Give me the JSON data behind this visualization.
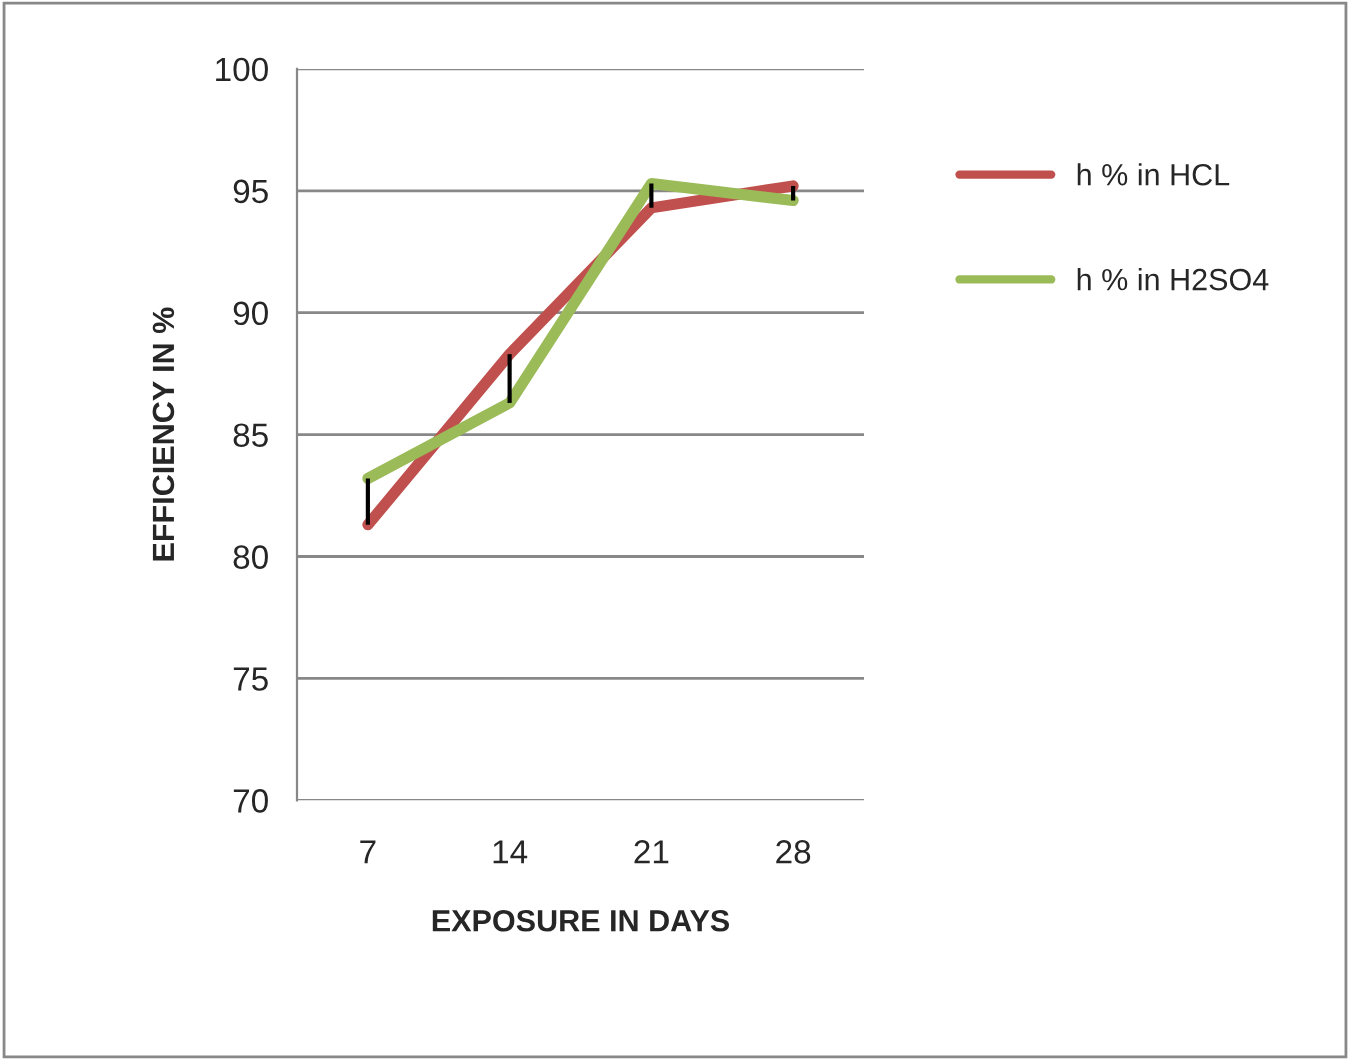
{
  "chart_data": {
    "type": "line",
    "xlabel": "EXPOSURE IN DAYS",
    "ylabel": "EFFICIENCY IN %",
    "categories": [
      "7",
      "14",
      "21",
      "28"
    ],
    "series": [
      {
        "name": "h % in HCL",
        "color": "#c0504d",
        "values": [
          81.3,
          88.3,
          94.3,
          95.2
        ]
      },
      {
        "name": "h % in H2SO4",
        "color": "#9bbb59",
        "values": [
          83.2,
          86.3,
          95.3,
          94.6
        ]
      }
    ],
    "ylim": [
      70,
      100
    ],
    "yticks": [
      70,
      75,
      80,
      85,
      90,
      95,
      100
    ],
    "grid": "y",
    "legend": "right",
    "marker": "none",
    "line_style": "solid"
  }
}
